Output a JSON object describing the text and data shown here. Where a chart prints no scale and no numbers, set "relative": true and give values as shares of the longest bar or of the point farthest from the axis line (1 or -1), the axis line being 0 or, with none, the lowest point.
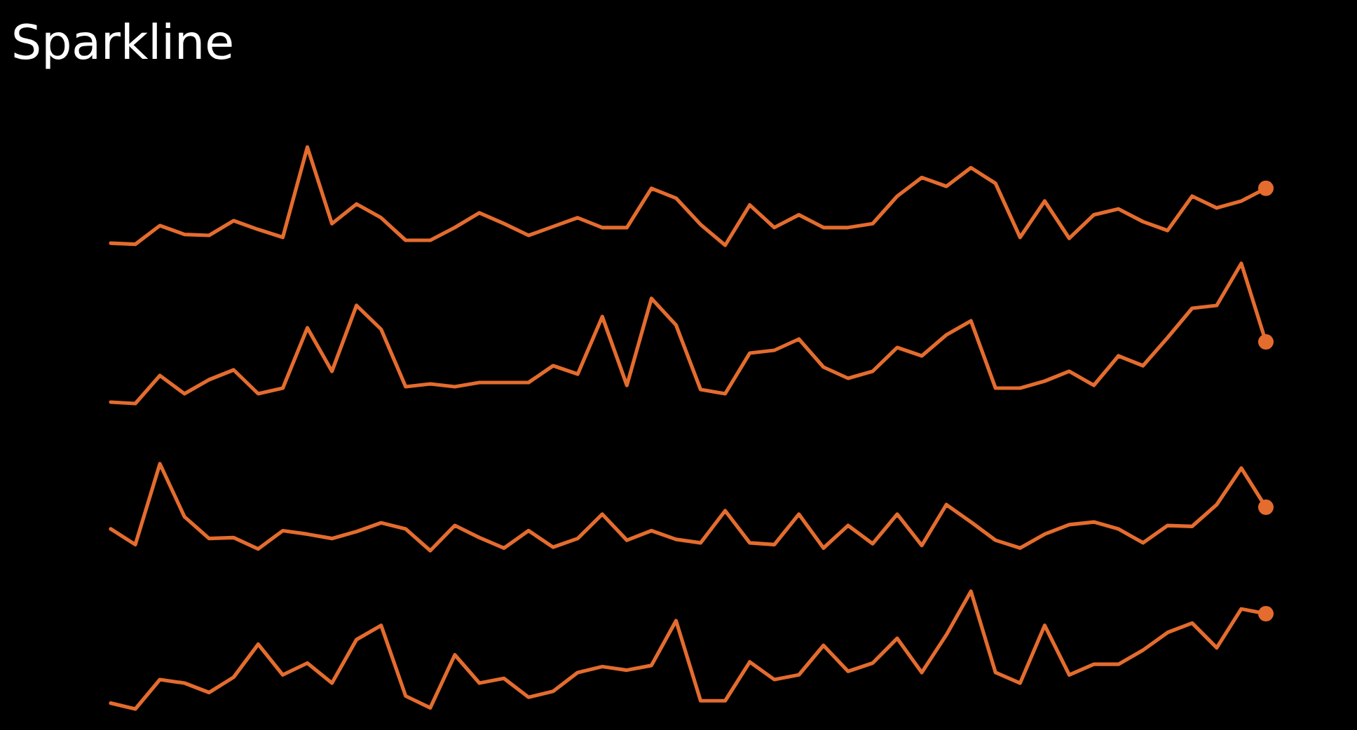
{
  "chart_data": [
    {
      "type": "line",
      "title": "Sparkline",
      "relative": true,
      "categories": [
        null,
        null,
        null,
        null,
        null,
        null,
        null,
        null,
        null,
        null,
        null,
        null,
        null,
        null,
        null,
        null,
        null,
        null,
        null,
        null,
        null,
        null,
        null,
        null,
        null,
        null,
        null,
        null,
        null,
        null,
        null,
        null,
        null,
        null,
        null,
        null,
        null,
        null,
        null,
        null,
        null,
        null,
        null,
        null,
        null,
        null,
        null,
        null
      ],
      "series": [
        {
          "color": "#e46c2e",
          "values": [
            0.02,
            0.01,
            0.2,
            0.11,
            0.1,
            0.25,
            0.16,
            0.08,
            1,
            0.22,
            0.42,
            0.28,
            0.05,
            0.05,
            0.18,
            0.33,
            0.22,
            0.1,
            0.19,
            0.28,
            0.18,
            0.18,
            0.58,
            0.48,
            0.21,
            0,
            0.41,
            0.18,
            0.31,
            0.18,
            0.18,
            0.22,
            0.5,
            0.69,
            0.6,
            0.79,
            0.63,
            0.08,
            0.45,
            0.07,
            0.31,
            0.37,
            0.24,
            0.15,
            0.5,
            0.38,
            0.45,
            0.58
          ]
        }
      ]
    },
    {
      "type": "line",
      "relative": true,
      "categories": [
        null,
        null,
        null,
        null,
        null,
        null,
        null,
        null,
        null,
        null,
        null,
        null,
        null,
        null,
        null,
        null,
        null,
        null,
        null,
        null,
        null,
        null,
        null,
        null,
        null,
        null,
        null,
        null,
        null,
        null,
        null,
        null,
        null,
        null,
        null,
        null,
        null,
        null,
        null,
        null,
        null,
        null,
        null,
        null,
        null,
        null,
        null,
        null
      ],
      "series": [
        {
          "color": "#e46c2e",
          "values": [
            0.01,
            0,
            0.2,
            0.07,
            0.17,
            0.24,
            0.07,
            0.11,
            0.54,
            0.23,
            0.7,
            0.53,
            0.12,
            0.14,
            0.12,
            0.15,
            0.15,
            0.15,
            0.27,
            0.21,
            0.62,
            0.13,
            0.75,
            0.56,
            0.1,
            0.07,
            0.36,
            0.38,
            0.46,
            0.26,
            0.18,
            0.23,
            0.4,
            0.34,
            0.49,
            0.59,
            0.11,
            0.11,
            0.16,
            0.23,
            0.13,
            0.34,
            0.27,
            0.47,
            0.68,
            0.7,
            1,
            0.44
          ]
        }
      ]
    },
    {
      "type": "line",
      "relative": true,
      "categories": [
        null,
        null,
        null,
        null,
        null,
        null,
        null,
        null,
        null,
        null,
        null,
        null,
        null,
        null,
        null,
        null,
        null,
        null,
        null,
        null,
        null,
        null,
        null,
        null,
        null,
        null,
        null,
        null,
        null,
        null,
        null,
        null,
        null,
        null,
        null,
        null,
        null,
        null,
        null,
        null,
        null,
        null,
        null,
        null,
        null,
        null,
        null,
        null
      ],
      "series": [
        {
          "color": "#e46c2e",
          "values": [
            0.25,
            0.07,
            1,
            0.39,
            0.14,
            0.15,
            0.02,
            0.23,
            0.19,
            0.14,
            0.22,
            0.32,
            0.25,
            0,
            0.29,
            0.15,
            0.03,
            0.23,
            0.04,
            0.14,
            0.42,
            0.12,
            0.23,
            0.13,
            0.09,
            0.46,
            0.09,
            0.07,
            0.42,
            0.03,
            0.29,
            0.08,
            0.42,
            0.06,
            0.53,
            0.33,
            0.12,
            0.03,
            0.19,
            0.3,
            0.33,
            0.25,
            0.09,
            0.29,
            0.28,
            0.53,
            0.95,
            0.5
          ]
        }
      ]
    },
    {
      "type": "line",
      "relative": true,
      "categories": [
        null,
        null,
        null,
        null,
        null,
        null,
        null,
        null,
        null,
        null,
        null,
        null,
        null,
        null,
        null,
        null,
        null,
        null,
        null,
        null,
        null,
        null,
        null,
        null,
        null,
        null,
        null,
        null,
        null,
        null,
        null,
        null,
        null,
        null,
        null,
        null,
        null,
        null,
        null,
        null,
        null,
        null,
        null,
        null,
        null,
        null,
        null,
        null
      ],
      "series": [
        {
          "color": "#e46c2e",
          "values": [
            0.05,
            0,
            0.25,
            0.22,
            0.14,
            0.27,
            0.55,
            0.29,
            0.39,
            0.22,
            0.59,
            0.71,
            0.11,
            0.01,
            0.46,
            0.22,
            0.26,
            0.1,
            0.15,
            0.31,
            0.36,
            0.33,
            0.37,
            0.75,
            0.07,
            0.07,
            0.4,
            0.25,
            0.29,
            0.54,
            0.32,
            0.39,
            0.6,
            0.31,
            0.63,
            1,
            0.31,
            0.22,
            0.71,
            0.29,
            0.38,
            0.38,
            0.5,
            0.65,
            0.73,
            0.52,
            0.85,
            0.81
          ]
        }
      ]
    }
  ]
}
